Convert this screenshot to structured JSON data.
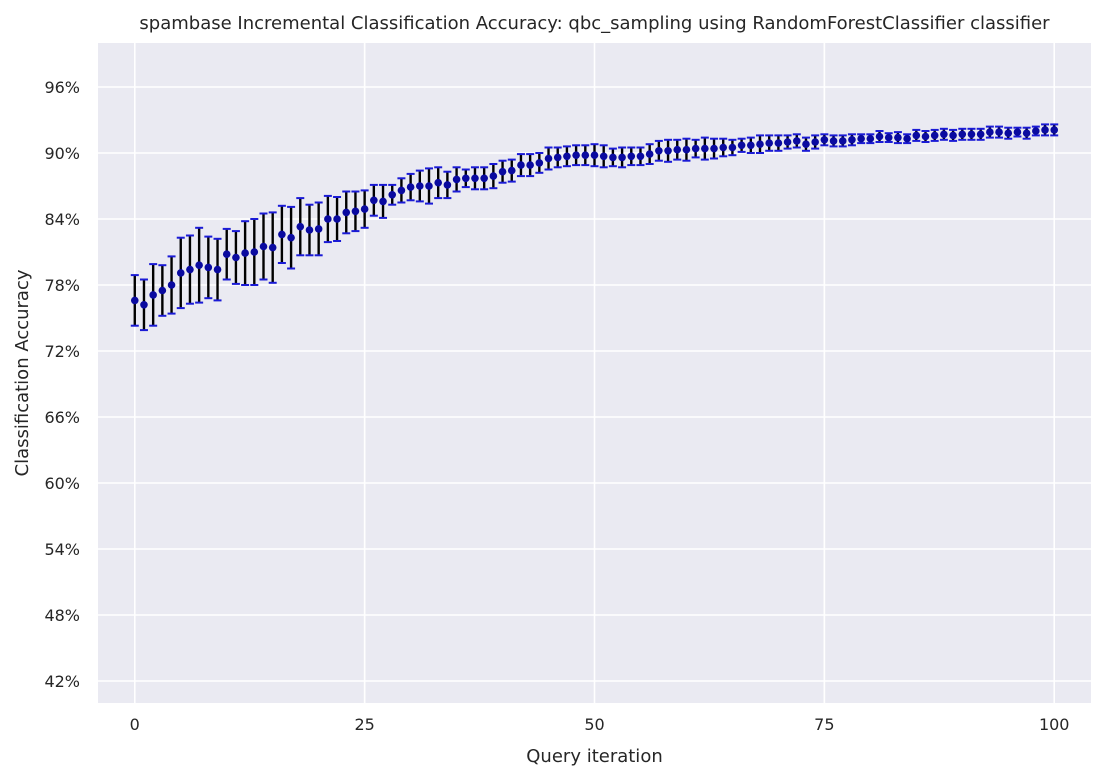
{
  "chart_data": {
    "type": "scatter",
    "title": "spambase Incremental Classification Accuracy: qbc_sampling using RandomForestClassifier classifier",
    "xlabel": "Query iteration",
    "ylabel": "Classification Accuracy",
    "xlim": [
      -4,
      104
    ],
    "ylim": [
      0.4,
      1.0
    ],
    "x_ticks": [
      0,
      25,
      50,
      75,
      100
    ],
    "y_ticks": [
      0.42,
      0.48,
      0.54,
      0.6,
      0.66,
      0.72,
      0.78,
      0.84,
      0.9,
      0.96
    ],
    "y_tick_labels": [
      "42%",
      "48%",
      "54%",
      "60%",
      "66%",
      "72%",
      "78%",
      "84%",
      "90%",
      "96%"
    ],
    "grid": true,
    "legend": "none",
    "colors": {
      "background": "#eaeaf2",
      "grid": "#ffffff",
      "marker": "#0a0aa0",
      "errorbar": "#000000",
      "cap": "#1a1ad6"
    },
    "series": [
      {
        "x": [
          0,
          1,
          2,
          3,
          4,
          5,
          6,
          7,
          8,
          9,
          10,
          11,
          12,
          13,
          14,
          15,
          16,
          17,
          18,
          19,
          20,
          21,
          22,
          23,
          24,
          25,
          26,
          27,
          28,
          29,
          30,
          31,
          32,
          33,
          34,
          35,
          36,
          37,
          38,
          39,
          40,
          41,
          42,
          43,
          44,
          45,
          46,
          47,
          48,
          49,
          50,
          51,
          52,
          53,
          54,
          55,
          56,
          57,
          58,
          59,
          60,
          61,
          62,
          63,
          64,
          65,
          66,
          67,
          68,
          69,
          70,
          71,
          72,
          73,
          74,
          75,
          76,
          77,
          78,
          79,
          80,
          81,
          82,
          83,
          84,
          85,
          86,
          87,
          88,
          89,
          90,
          91,
          92,
          93,
          94,
          95,
          96,
          97,
          98,
          99,
          100
        ],
        "y": [
          0.766,
          0.762,
          0.771,
          0.775,
          0.78,
          0.791,
          0.794,
          0.798,
          0.796,
          0.794,
          0.808,
          0.805,
          0.809,
          0.81,
          0.815,
          0.814,
          0.826,
          0.823,
          0.833,
          0.83,
          0.831,
          0.84,
          0.84,
          0.846,
          0.847,
          0.849,
          0.857,
          0.856,
          0.862,
          0.866,
          0.869,
          0.87,
          0.87,
          0.873,
          0.871,
          0.876,
          0.877,
          0.877,
          0.877,
          0.879,
          0.883,
          0.884,
          0.889,
          0.889,
          0.891,
          0.895,
          0.896,
          0.897,
          0.898,
          0.898,
          0.898,
          0.897,
          0.896,
          0.896,
          0.897,
          0.897,
          0.899,
          0.902,
          0.902,
          0.903,
          0.903,
          0.904,
          0.904,
          0.904,
          0.905,
          0.905,
          0.907,
          0.907,
          0.908,
          0.909,
          0.909,
          0.91,
          0.911,
          0.908,
          0.91,
          0.912,
          0.911,
          0.911,
          0.912,
          0.913,
          0.913,
          0.915,
          0.914,
          0.914,
          0.913,
          0.916,
          0.915,
          0.916,
          0.917,
          0.916,
          0.917,
          0.917,
          0.917,
          0.919,
          0.919,
          0.918,
          0.919,
          0.918,
          0.92,
          0.921,
          0.921
        ],
        "yerr": [
          0.023,
          0.023,
          0.028,
          0.023,
          0.026,
          0.032,
          0.031,
          0.034,
          0.028,
          0.028,
          0.023,
          0.024,
          0.029,
          0.03,
          0.03,
          0.032,
          0.026,
          0.028,
          0.026,
          0.023,
          0.024,
          0.021,
          0.02,
          0.019,
          0.018,
          0.017,
          0.014,
          0.015,
          0.009,
          0.011,
          0.012,
          0.014,
          0.016,
          0.014,
          0.012,
          0.011,
          0.008,
          0.01,
          0.01,
          0.011,
          0.01,
          0.01,
          0.01,
          0.01,
          0.009,
          0.01,
          0.009,
          0.009,
          0.009,
          0.009,
          0.01,
          0.01,
          0.008,
          0.009,
          0.008,
          0.008,
          0.009,
          0.009,
          0.01,
          0.009,
          0.01,
          0.008,
          0.01,
          0.009,
          0.008,
          0.007,
          0.006,
          0.007,
          0.008,
          0.007,
          0.007,
          0.006,
          0.006,
          0.006,
          0.006,
          0.005,
          0.005,
          0.005,
          0.005,
          0.004,
          0.004,
          0.005,
          0.004,
          0.005,
          0.004,
          0.005,
          0.005,
          0.005,
          0.005,
          0.005,
          0.005,
          0.005,
          0.005,
          0.005,
          0.005,
          0.005,
          0.004,
          0.005,
          0.004,
          0.005,
          0.005
        ]
      }
    ]
  }
}
